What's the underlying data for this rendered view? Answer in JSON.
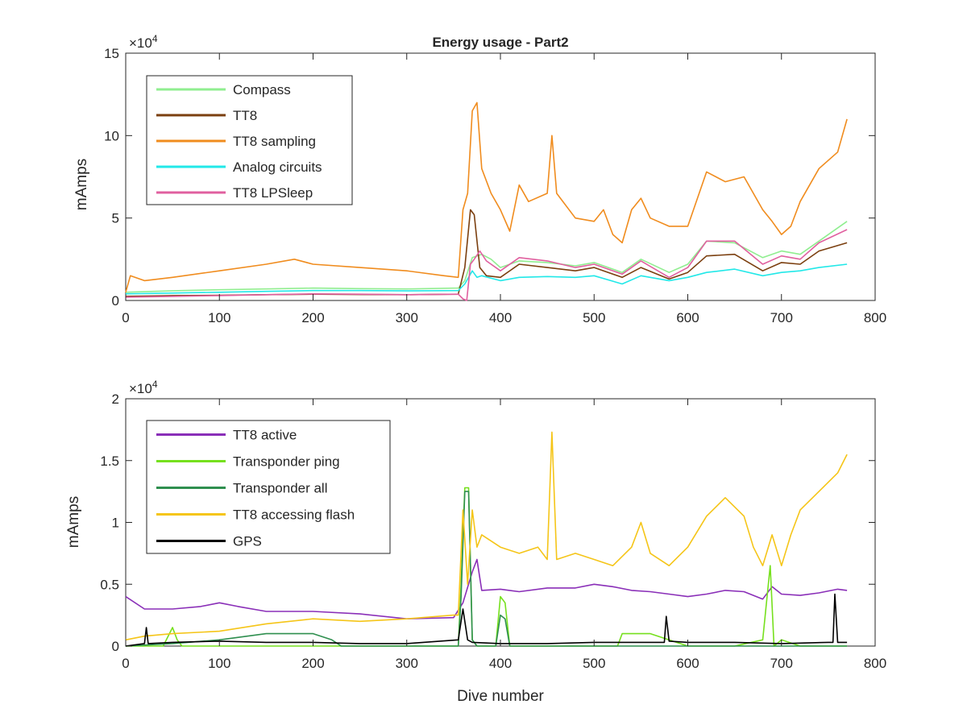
{
  "chart_data": [
    {
      "type": "line",
      "title": "Energy usage - Part2",
      "xlabel": "",
      "ylabel": "mAmps",
      "y_multiplier": {
        "base": "×10",
        "exp": "4"
      },
      "xlim": [
        0,
        800
      ],
      "ylim": [
        0,
        150000
      ],
      "xticks": [
        0,
        100,
        200,
        300,
        400,
        500,
        600,
        700,
        800
      ],
      "yticks": [
        0,
        50000,
        100000,
        150000
      ],
      "ytick_labels": [
        "0",
        "5",
        "10",
        "15"
      ],
      "grid": false,
      "legend_position": "top-left",
      "series": [
        {
          "name": "Compass",
          "color": "#90ee90",
          "x": [
            0,
            30,
            60,
            100,
            150,
            200,
            250,
            300,
            355,
            362,
            370,
            380,
            390,
            400,
            420,
            450,
            480,
            500,
            530,
            550,
            580,
            600,
            620,
            650,
            680,
            700,
            720,
            740,
            770
          ],
          "y": [
            5000,
            5500,
            6000,
            6500,
            7000,
            7500,
            7200,
            7000,
            7500,
            12000,
            26000,
            28000,
            25000,
            20000,
            24000,
            23000,
            21000,
            23000,
            17000,
            25000,
            17000,
            22000,
            36000,
            35000,
            26000,
            30000,
            28000,
            36000,
            48000
          ]
        },
        {
          "name": "TT8",
          "color": "#7b3f0f",
          "x": [
            0,
            50,
            100,
            150,
            200,
            250,
            300,
            355,
            362,
            368,
            372,
            378,
            385,
            400,
            420,
            450,
            480,
            500,
            530,
            550,
            580,
            600,
            620,
            650,
            680,
            700,
            720,
            740,
            770
          ],
          "y": [
            2500,
            3000,
            3200,
            3500,
            3800,
            3600,
            3500,
            3800,
            20000,
            55000,
            52000,
            20000,
            15000,
            14000,
            22000,
            20000,
            18000,
            20000,
            14000,
            20000,
            13000,
            17000,
            27000,
            28000,
            18000,
            23000,
            22000,
            30000,
            35000
          ]
        },
        {
          "name": "TT8 sampling",
          "color": "#f08c1e",
          "x": [
            0,
            5,
            20,
            50,
            100,
            150,
            180,
            200,
            250,
            300,
            340,
            355,
            360,
            365,
            370,
            375,
            380,
            390,
            400,
            410,
            420,
            430,
            450,
            455,
            460,
            480,
            500,
            510,
            520,
            530,
            540,
            550,
            560,
            580,
            600,
            620,
            640,
            660,
            680,
            690,
            700,
            710,
            720,
            740,
            760,
            770
          ],
          "y": [
            5000,
            15000,
            12000,
            14000,
            18000,
            22000,
            25000,
            22000,
            20000,
            18000,
            15000,
            14000,
            55000,
            65000,
            115000,
            120000,
            80000,
            65000,
            55000,
            42000,
            70000,
            60000,
            65000,
            100000,
            65000,
            50000,
            48000,
            55000,
            40000,
            35000,
            55000,
            62000,
            50000,
            45000,
            45000,
            78000,
            72000,
            75000,
            55000,
            48000,
            40000,
            45000,
            60000,
            80000,
            90000,
            110000
          ]
        },
        {
          "name": "Analog circuits",
          "color": "#22e8e8",
          "x": [
            0,
            50,
            100,
            150,
            200,
            250,
            300,
            355,
            362,
            370,
            375,
            380,
            400,
            420,
            450,
            480,
            500,
            530,
            550,
            580,
            600,
            620,
            650,
            680,
            700,
            720,
            740,
            770
          ],
          "y": [
            4000,
            4500,
            5000,
            5500,
            6000,
            6000,
            5800,
            6000,
            10000,
            18000,
            14000,
            15000,
            12000,
            14000,
            14500,
            14000,
            15000,
            10000,
            15000,
            12000,
            14000,
            17000,
            19000,
            15000,
            17000,
            18000,
            20000,
            22000
          ]
        },
        {
          "name": "TT8 LPSleep",
          "color": "#e0609f",
          "x": [
            0,
            50,
            100,
            150,
            200,
            250,
            300,
            355,
            360,
            364,
            368,
            372,
            378,
            385,
            400,
            420,
            450,
            480,
            500,
            530,
            550,
            580,
            600,
            620,
            650,
            680,
            700,
            720,
            740,
            770
          ],
          "y": [
            2000,
            2500,
            3000,
            3500,
            4000,
            3800,
            3500,
            3800,
            1000,
            0,
            22000,
            25000,
            30000,
            24000,
            18000,
            26000,
            24000,
            20000,
            22000,
            16000,
            24000,
            14000,
            20000,
            36000,
            36000,
            22000,
            27000,
            25000,
            35000,
            43000
          ]
        }
      ]
    },
    {
      "type": "line",
      "title": "",
      "xlabel": "Dive number",
      "ylabel": "mAmps",
      "y_multiplier": {
        "base": "×10",
        "exp": "4"
      },
      "xlim": [
        0,
        800
      ],
      "ylim": [
        0,
        20000
      ],
      "xticks": [
        0,
        100,
        200,
        300,
        400,
        500,
        600,
        700,
        800
      ],
      "yticks": [
        0,
        5000,
        10000,
        15000,
        20000
      ],
      "ytick_labels": [
        "0",
        "0.5",
        "1",
        "1.5",
        "2"
      ],
      "grid": false,
      "legend_position": "top-left",
      "series": [
        {
          "name": "TT8 active",
          "color": "#8a2fb8",
          "x": [
            0,
            20,
            50,
            80,
            100,
            120,
            150,
            200,
            250,
            300,
            350,
            360,
            370,
            375,
            380,
            400,
            420,
            450,
            480,
            500,
            520,
            540,
            560,
            580,
            600,
            620,
            640,
            660,
            680,
            690,
            700,
            720,
            740,
            760,
            770
          ],
          "y": [
            4000,
            3000,
            3000,
            3200,
            3500,
            3200,
            2800,
            2800,
            2600,
            2200,
            2300,
            3500,
            6000,
            7000,
            4500,
            4600,
            4400,
            4700,
            4700,
            5000,
            4800,
            4500,
            4400,
            4200,
            4000,
            4200,
            4500,
            4400,
            3800,
            4800,
            4200,
            4100,
            4300,
            4600,
            4500
          ]
        },
        {
          "name": "Transponder ping",
          "color": "#76e01e",
          "x": [
            0,
            40,
            50,
            55,
            60,
            100,
            200,
            300,
            355,
            358,
            362,
            366,
            370,
            375,
            395,
            400,
            405,
            410,
            420,
            450,
            500,
            525,
            530,
            560,
            600,
            650,
            680,
            688,
            692,
            700,
            720,
            770
          ],
          "y": [
            0,
            0,
            1500,
            500,
            0,
            0,
            0,
            0,
            0,
            5000,
            12800,
            12800,
            500,
            0,
            0,
            4000,
            3500,
            0,
            0,
            0,
            0,
            0,
            1000,
            1000,
            0,
            0,
            500,
            6500,
            0,
            500,
            0,
            0
          ]
        },
        {
          "name": "Transponder all",
          "color": "#2f8f4f",
          "x": [
            0,
            50,
            100,
            150,
            200,
            220,
            230,
            300,
            355,
            358,
            362,
            366,
            370,
            375,
            395,
            400,
            405,
            410,
            420,
            450,
            500,
            600,
            680,
            688,
            692,
            700,
            770
          ],
          "y": [
            0,
            200,
            500,
            1000,
            1000,
            500,
            0,
            0,
            0,
            4000,
            12500,
            12500,
            500,
            0,
            0,
            2500,
            2200,
            0,
            0,
            0,
            0,
            0,
            0,
            0,
            0,
            0,
            0
          ]
        },
        {
          "name": "TT8 accessing flash",
          "color": "#f5c518",
          "x": [
            0,
            20,
            50,
            100,
            150,
            200,
            250,
            300,
            350,
            355,
            360,
            365,
            370,
            375,
            380,
            400,
            420,
            440,
            450,
            455,
            460,
            480,
            500,
            520,
            540,
            550,
            560,
            580,
            600,
            620,
            640,
            660,
            670,
            680,
            690,
            700,
            710,
            720,
            740,
            760,
            770
          ],
          "y": [
            500,
            800,
            1000,
            1200,
            1800,
            2200,
            2000,
            2200,
            2500,
            2500,
            11000,
            5000,
            11000,
            8000,
            9000,
            8000,
            7500,
            8000,
            7000,
            17300,
            7000,
            7500,
            7000,
            6500,
            8000,
            10000,
            7500,
            6500,
            8000,
            10500,
            12000,
            10500,
            8000,
            6500,
            9000,
            6500,
            9000,
            11000,
            12500,
            14000,
            15500
          ]
        },
        {
          "name": "GPS",
          "color": "#000000",
          "x": [
            0,
            20,
            22,
            24,
            50,
            100,
            150,
            200,
            250,
            300,
            355,
            360,
            365,
            370,
            400,
            450,
            500,
            550,
            575,
            577,
            580,
            600,
            650,
            700,
            750,
            755,
            757,
            760,
            770
          ],
          "y": [
            0,
            200,
            1500,
            200,
            300,
            400,
            300,
            300,
            200,
            200,
            500,
            3000,
            500,
            300,
            200,
            200,
            300,
            300,
            300,
            2400,
            400,
            300,
            300,
            200,
            300,
            300,
            4200,
            300,
            300
          ]
        }
      ]
    }
  ]
}
